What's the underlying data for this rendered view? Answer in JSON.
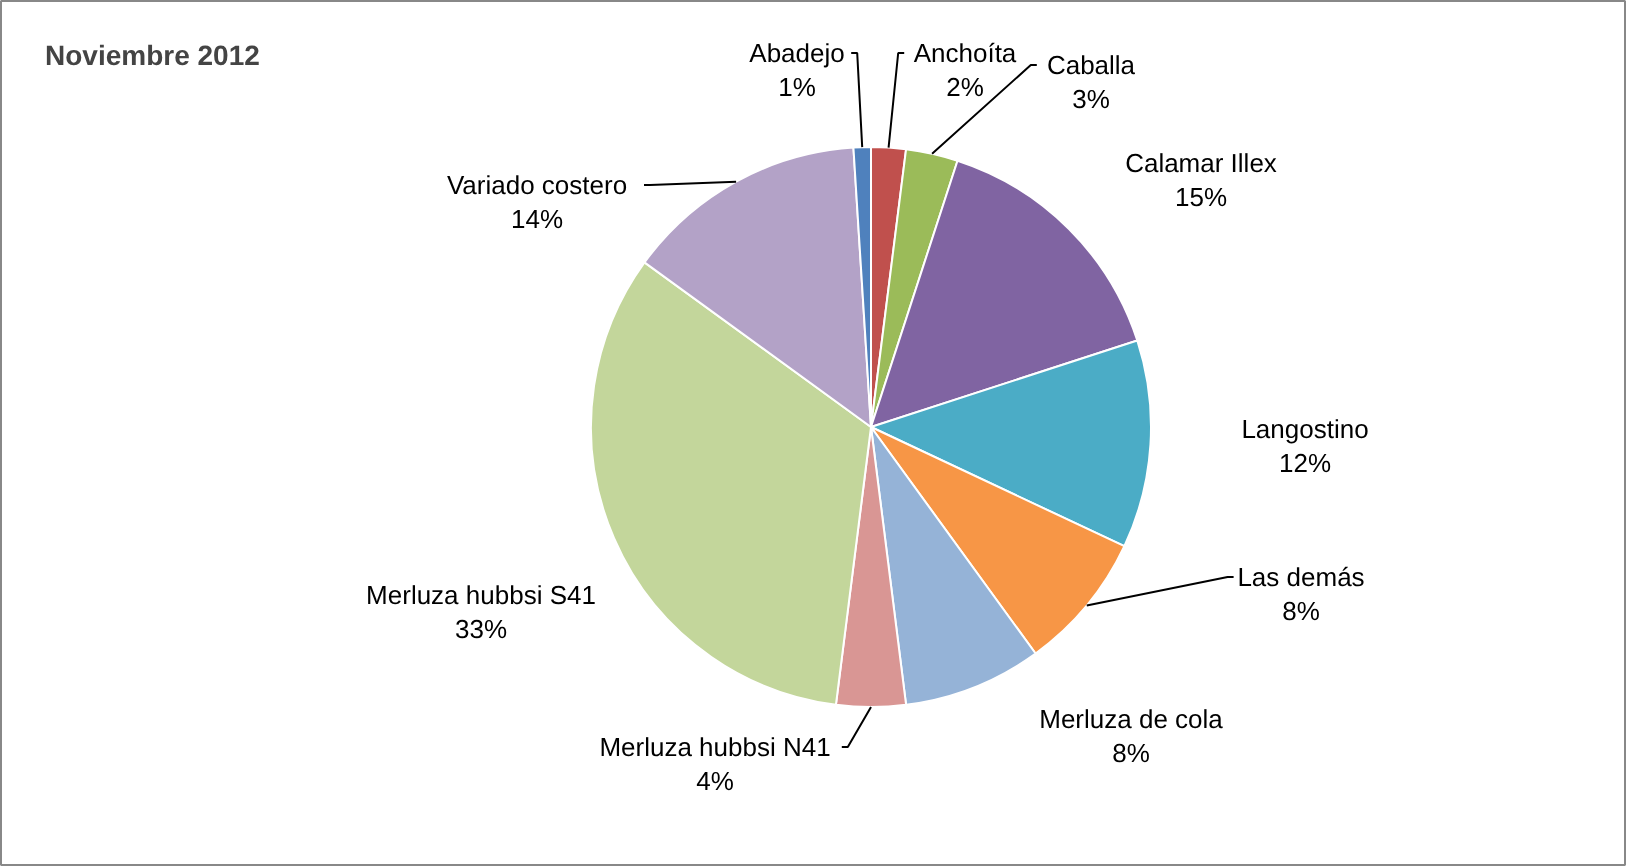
{
  "chart_data": {
    "type": "pie",
    "title": "Noviembre 2012",
    "categories": [
      "Anchoíta",
      "Caballa",
      "Calamar Illex",
      "Langostino",
      "Las demás",
      "Merluza de cola",
      "Merluza hubbsi N41",
      "Merluza hubbsi S41",
      "Variado costero",
      "Abadejo"
    ],
    "values": [
      2,
      3,
      15,
      12,
      8,
      8,
      4,
      33,
      14,
      1
    ],
    "value_labels": [
      "2%",
      "3%",
      "15%",
      "12%",
      "8%",
      "8%",
      "4%",
      "33%",
      "14%",
      "1%"
    ],
    "colors": [
      "#c0504d",
      "#9bbb59",
      "#8064a2",
      "#4bacc6",
      "#f79646",
      "#95b3d7",
      "#d99694",
      "#c3d69b",
      "#b3a2c7",
      "#4f81bd"
    ]
  }
}
